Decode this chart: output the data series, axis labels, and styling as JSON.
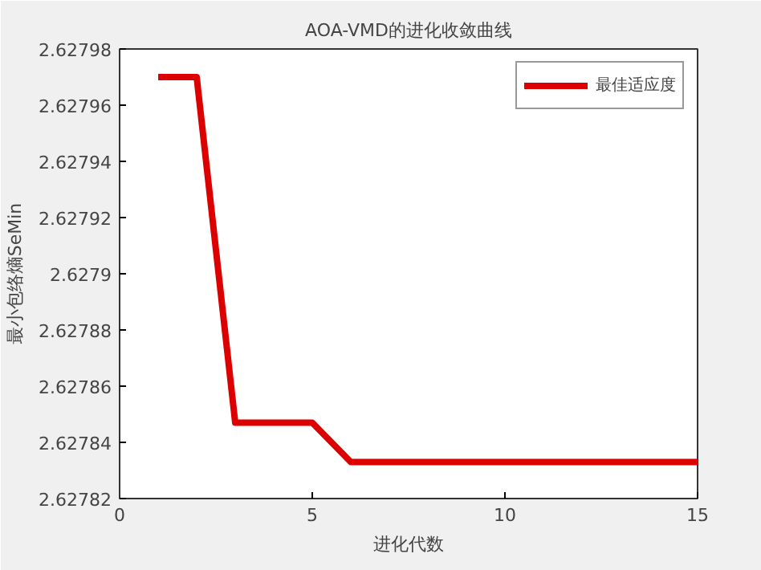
{
  "chart_data": {
    "type": "line",
    "title": "AOA-VMD的进化收敛曲线",
    "xlabel": "进化代数",
    "ylabel": "最小包络熵SeMin",
    "x": [
      1,
      2,
      3,
      4,
      5,
      6,
      7,
      8,
      9,
      10,
      11,
      12,
      13,
      14,
      15
    ],
    "series": [
      {
        "name": "最佳适应度",
        "color": "#dd0000",
        "values": [
          2.62797,
          2.62797,
          2.627847,
          2.627847,
          2.627847,
          2.627833,
          2.627833,
          2.627833,
          2.627833,
          2.627833,
          2.627833,
          2.627833,
          2.627833,
          2.627833,
          2.627833
        ]
      }
    ],
    "xlim": [
      0,
      15
    ],
    "xticks": [
      0,
      5,
      10,
      15
    ],
    "ylim": [
      2.62782,
      2.62798
    ],
    "yticks": [
      2.62782,
      2.62784,
      2.62786,
      2.62788,
      2.6279,
      2.62792,
      2.62794,
      2.62796,
      2.62798
    ],
    "grid": false,
    "legend": "top right",
    "marker": "none",
    "line_style": "solid"
  }
}
